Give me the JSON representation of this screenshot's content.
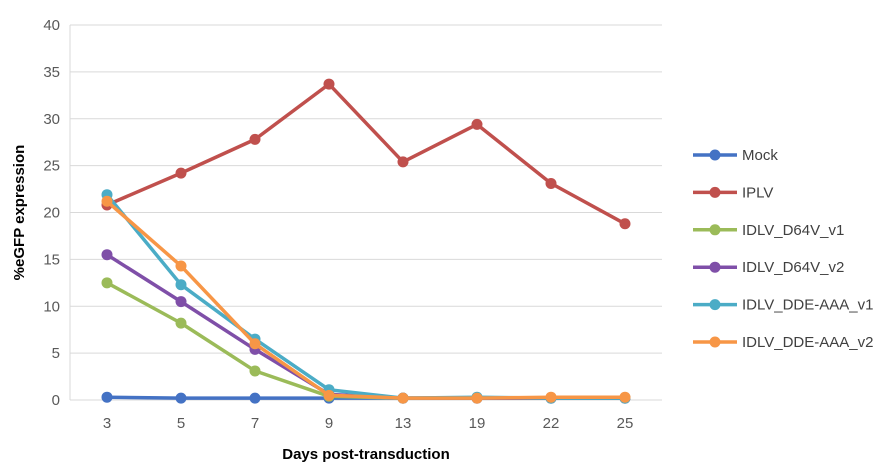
{
  "chart_data": {
    "type": "line",
    "xlabel": "Days post-transduction",
    "ylabel": "%eGFP expression",
    "ylim": [
      0,
      40
    ],
    "yticks": [
      0,
      5,
      10,
      15,
      20,
      25,
      30,
      35,
      40
    ],
    "categories": [
      "3",
      "5",
      "7",
      "9",
      "13",
      "19",
      "22",
      "25"
    ],
    "grid": true,
    "legend_position": "right",
    "series": [
      {
        "name": "Mock",
        "color": "#4472c4",
        "values": [
          0.3,
          0.2,
          0.2,
          0.2,
          0.2,
          0.2,
          0.2,
          0.2
        ]
      },
      {
        "name": "IPLV",
        "color": "#c0504d",
        "values": [
          20.8,
          24.2,
          27.8,
          33.7,
          25.4,
          29.4,
          23.1,
          18.8
        ]
      },
      {
        "name": "IDLV_D64V_v1",
        "color": "#9bbb59",
        "values": [
          12.5,
          8.2,
          3.1,
          0.4,
          0.2,
          0.2,
          0.2,
          0.2
        ]
      },
      {
        "name": "IDLV_D64V_v2",
        "color": "#7f4fa8",
        "values": [
          15.5,
          10.5,
          5.4,
          0.6,
          0.2,
          0.2,
          0.2,
          0.2
        ]
      },
      {
        "name": "IDLV_DDE-AAA_v1",
        "color": "#4bacc6",
        "values": [
          21.9,
          12.3,
          6.5,
          1.1,
          0.2,
          0.3,
          0.2,
          0.2
        ]
      },
      {
        "name": "IDLV_DDE-AAA_v2",
        "color": "#f79646",
        "values": [
          21.2,
          14.3,
          6.0,
          0.5,
          0.2,
          0.2,
          0.3,
          0.3
        ]
      }
    ]
  }
}
